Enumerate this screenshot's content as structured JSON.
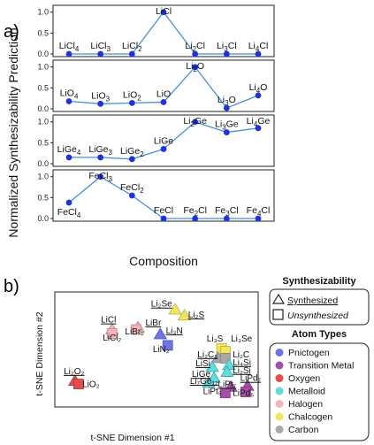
{
  "panel_a_label": "a)",
  "panel_b_label": "b)",
  "chart_data": [
    {
      "type": "line",
      "panel": "a",
      "ylabel": "Normalized Synthesizability Prediction",
      "xlabel": "Composition",
      "yticks": [
        "0.0",
        "0.5",
        "1.0"
      ],
      "ylim": [
        0,
        1.1
      ],
      "grid": false,
      "subplots": [
        {
          "categories": [
            {
              "base": "LiCl",
              "sub": "4"
            },
            {
              "base": "LiCl",
              "sub": "3"
            },
            {
              "base": "LiCl",
              "sub": "2"
            },
            {
              "base": "LiCl",
              "sub": ""
            },
            {
              "pre": "Li",
              "sub": "2",
              "post": "Cl"
            },
            {
              "pre": "Li",
              "sub": "3",
              "post": "Cl"
            },
            {
              "pre": "Li",
              "sub": "4",
              "post": "Cl"
            }
          ],
          "values": [
            0.0,
            0.0,
            0.0,
            1.0,
            0.0,
            0.0,
            0.0
          ]
        },
        {
          "categories": [
            {
              "base": "LiO",
              "sub": "4"
            },
            {
              "base": "LiO",
              "sub": "3"
            },
            {
              "base": "LiO",
              "sub": "2"
            },
            {
              "base": "LiO",
              "sub": ""
            },
            {
              "pre": "Li",
              "sub": "2",
              "post": "O"
            },
            {
              "pre": "Li",
              "sub": "3",
              "post": "O"
            },
            {
              "pre": "Li",
              "sub": "4",
              "post": "O"
            }
          ],
          "values": [
            0.18,
            0.12,
            0.14,
            0.16,
            1.0,
            0.02,
            0.32
          ]
        },
        {
          "categories": [
            {
              "base": "LiGe",
              "sub": "4"
            },
            {
              "base": "LiGe",
              "sub": "3"
            },
            {
              "base": "LiGe",
              "sub": "2"
            },
            {
              "base": "LiGe",
              "sub": ""
            },
            {
              "pre": "Li",
              "sub": "2",
              "post": "Ge"
            },
            {
              "pre": "Li",
              "sub": "3",
              "post": "Ge"
            },
            {
              "pre": "Li",
              "sub": "4",
              "post": "Ge"
            }
          ],
          "values": [
            0.15,
            0.15,
            0.11,
            0.35,
            1.0,
            0.75,
            0.85
          ]
        },
        {
          "categories": [
            {
              "base": "FeCl",
              "sub": "4"
            },
            {
              "base": "FeCl",
              "sub": "3"
            },
            {
              "base": "FeCl",
              "sub": "2"
            },
            {
              "base": "FeCl",
              "sub": ""
            },
            {
              "pre": "Fe",
              "sub": "2",
              "post": "Cl"
            },
            {
              "pre": "Fe",
              "sub": "3",
              "post": "Cl"
            },
            {
              "pre": "Fe",
              "sub": "4",
              "post": "Cl"
            }
          ],
          "values": [
            0.38,
            1.0,
            0.55,
            0.0,
            0.0,
            0.0,
            0.0
          ]
        }
      ],
      "line_color": "#4a8fd4",
      "marker_color": "#1f32e0"
    },
    {
      "type": "scatter",
      "panel": "b",
      "xlabel": "t-SNE Dimension #1",
      "ylabel": "t-SNE Dimension #2",
      "xlim": [
        0,
        100
      ],
      "ylim": [
        0,
        100
      ],
      "points": [
        {
          "label": "Li₂Se",
          "x": 61,
          "y": 91,
          "type": "Chalcogen",
          "status": "Synthesized",
          "lx": 48,
          "ly": 94
        },
        {
          "label": "Li₂S",
          "x": 66,
          "y": 85,
          "type": "Chalcogen",
          "status": "Synthesized",
          "lx": 68,
          "ly": 83
        },
        {
          "label": "LiCl",
          "x": 27,
          "y": 71,
          "type": "Halogen",
          "status": "Synthesized",
          "lx": 21,
          "ly": 78
        },
        {
          "label": "LiCl₂",
          "x": 27,
          "y": 67,
          "type": "Halogen",
          "status": "Unsynthesized",
          "lx": 22,
          "ly": 60
        },
        {
          "label": "LiBr",
          "x": 41,
          "y": 73,
          "type": "Halogen",
          "status": "Synthesized",
          "lx": 45,
          "ly": 75
        },
        {
          "label": "LiBr₂",
          "x": 40,
          "y": 71,
          "type": "Halogen",
          "status": "Unsynthesized",
          "lx": 34,
          "ly": 66
        },
        {
          "label": "Li₃N",
          "x": 53,
          "y": 66,
          "type": "Pnictogen",
          "status": "Synthesized",
          "lx": 56,
          "ly": 67
        },
        {
          "label": "LiN₂",
          "x": 57,
          "y": 55,
          "type": "Pnictogen",
          "status": "Unsynthesized",
          "lx": 49,
          "ly": 48
        },
        {
          "label": "Li₂O₂",
          "x": 7,
          "y": 19,
          "type": "Oxygen",
          "status": "Synthesized",
          "lx": 1,
          "ly": 26
        },
        {
          "label": "LiO₂",
          "x": 9,
          "y": 16,
          "type": "Oxygen",
          "status": "Unsynthesized",
          "lx": 11,
          "ly": 13
        },
        {
          "label": "Li₃S",
          "x": 86,
          "y": 52,
          "type": "Chalcogen",
          "status": "Unsynthesized",
          "lx": 78,
          "ly": 59
        },
        {
          "label": "Li₃Se",
          "x": 88,
          "y": 49,
          "type": "Chalcogen",
          "status": "Unsynthesized",
          "lx": 91,
          "ly": 59
        },
        {
          "label": "Li₂C₃",
          "x": 84,
          "y": 42,
          "type": "Carbon",
          "status": "Synthesized",
          "lx": 73,
          "ly": 43
        },
        {
          "label": "Li₂C",
          "x": 88,
          "y": 42,
          "type": "Carbon",
          "status": "Unsynthesized",
          "lx": 92,
          "ly": 43
        },
        {
          "label": "Li₄Si",
          "x": 90,
          "y": 35,
          "type": "Metalloid",
          "status": "Synthesized",
          "lx": 92,
          "ly": 35
        },
        {
          "label": "LiSi",
          "x": 81,
          "y": 33,
          "type": "Metalloid",
          "status": "Synthesized",
          "lx": 72,
          "ly": 34
        },
        {
          "label": "Li₂Si",
          "x": 89,
          "y": 28,
          "type": "Metalloid",
          "status": "Synthesized",
          "lx": 92,
          "ly": 27
        },
        {
          "label": "LiGe",
          "x": 82,
          "y": 22,
          "type": "Metalloid",
          "status": "Synthesized",
          "lx": 70,
          "ly": 23
        },
        {
          "label": "Li₇Ge₁₂",
          "x": 79,
          "y": 17,
          "type": "Metalloid",
          "status": "Synthesized",
          "lx": 69,
          "ly": 16
        },
        {
          "label": "LiPd₇",
          "x": 100,
          "y": 14,
          "type": "Transition Metal",
          "status": "Synthesized",
          "lx": 96,
          "ly": 19
        },
        {
          "label": "LiPt₇",
          "x": 91,
          "y": 13,
          "type": "Transition Metal",
          "status": "Synthesized",
          "lx": 84,
          "ly": 13
        },
        {
          "label": "LiPt₅",
          "x": 88,
          "y": 7,
          "type": "Transition Metal",
          "status": "Unsynthesized",
          "lx": 76,
          "ly": 6
        },
        {
          "label": "LiPd₅",
          "x": 99,
          "y": 8,
          "type": "Transition Metal",
          "status": "Unsynthesized",
          "lx": 92,
          "ly": 4
        }
      ]
    }
  ],
  "legend": {
    "synth_title": "Synthesizability",
    "synthesized": "Synthesized",
    "unsynthesized": "Unsynthesized",
    "atom_title": "Atom Types",
    "atom_types": [
      {
        "name": "Pnictogen",
        "color": "#6f74e3"
      },
      {
        "name": "Transition Metal",
        "color": "#a64fa8"
      },
      {
        "name": "Oxygen",
        "color": "#e34d4d"
      },
      {
        "name": "Metalloid",
        "color": "#5fdcdc"
      },
      {
        "name": "Halogen",
        "color": "#f2b4bc"
      },
      {
        "name": "Chalcogen",
        "color": "#f0e85a"
      },
      {
        "name": "Carbon",
        "color": "#a8a8a8"
      }
    ]
  }
}
